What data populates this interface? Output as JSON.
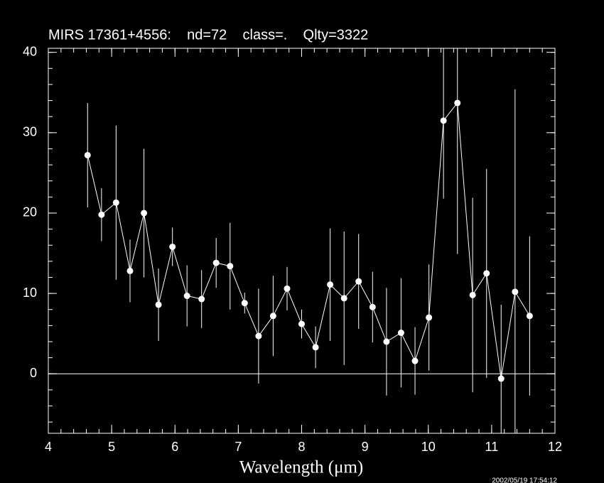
{
  "chart_data": {
    "type": "errorbar",
    "title": "MIRS 17361+4556:    nd=72    class=.    Qlty=3322",
    "xlabel": "Wavelength (μm)",
    "timestamp": "2002/05/19 17:54:12",
    "color": "#ffffff",
    "x": [
      4.62,
      4.84,
      5.07,
      5.29,
      5.51,
      5.74,
      5.96,
      6.19,
      6.42,
      6.65,
      6.87,
      7.1,
      7.32,
      7.55,
      7.77,
      8.0,
      8.22,
      8.45,
      8.67,
      8.9,
      9.12,
      9.34,
      9.57,
      9.79,
      10.01,
      10.24,
      10.46,
      10.7,
      10.92,
      11.15,
      11.37,
      11.6
    ],
    "y": [
      27.2,
      19.8,
      21.3,
      12.8,
      20.0,
      8.6,
      15.8,
      9.7,
      9.3,
      13.8,
      13.4,
      8.8,
      4.7,
      7.2,
      10.6,
      6.2,
      3.3,
      11.1,
      9.4,
      11.5,
      8.3,
      4.0,
      5.1,
      1.6,
      7.0,
      31.5,
      33.7,
      9.8,
      12.5,
      -0.6,
      10.2,
      7.2
    ],
    "yerr": [
      6.5,
      3.3,
      9.6,
      3.9,
      8.0,
      4.5,
      2.4,
      3.8,
      3.6,
      3.1,
      5.4,
      1.3,
      5.9,
      5.0,
      2.7,
      1.8,
      2.6,
      7.0,
      8.3,
      5.9,
      4.4,
      6.7,
      6.8,
      4.2,
      6.6,
      9.7,
      18.8,
      12.1,
      13.0,
      9.2,
      25.2,
      9.9
    ],
    "xlim": [
      4,
      12
    ],
    "ylim": [
      -7.4,
      40.5
    ],
    "xticks": [
      4,
      5,
      6,
      7,
      8,
      9,
      10,
      11,
      12
    ],
    "yticks": [
      0,
      10,
      20,
      30,
      40
    ],
    "xminor_step": 0.2,
    "yminor_step": 2,
    "hline": 0,
    "grid": false
  }
}
